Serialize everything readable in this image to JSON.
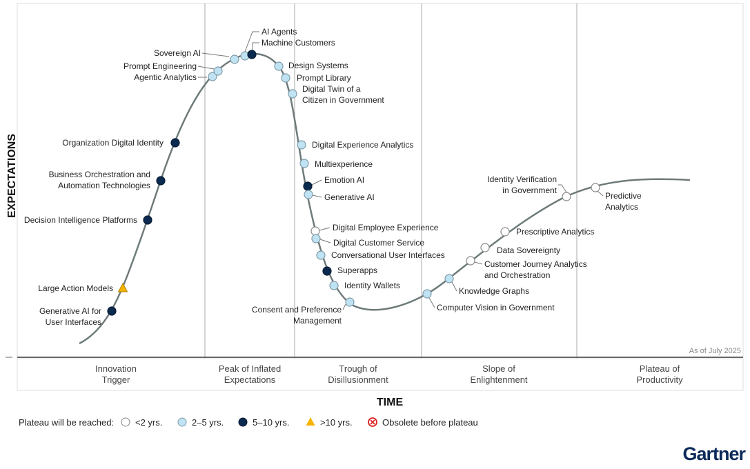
{
  "y_axis_label": "EXPECTATIONS",
  "x_axis_label": "TIME",
  "as_of": "As of July 2025",
  "phases": [
    "Innovation|Trigger",
    "Peak of Inflated|Expectations",
    "Trough of|Disillusionment",
    "Slope of|Enlightenment",
    "Plateau of|Productivity"
  ],
  "legend": {
    "title": "Plateau will be reached:",
    "items": [
      {
        "key": "lt2",
        "label": "<2 yrs."
      },
      {
        "key": "2to5",
        "label": "2–5 yrs."
      },
      {
        "key": "5to10",
        "label": "5–10 yrs."
      },
      {
        "key": "gt10",
        "label": ">10 yrs."
      },
      {
        "key": "obsolete",
        "label": "Obsolete before plateau"
      }
    ]
  },
  "colors": {
    "lt2": "#ffffff",
    "2to5": "#bfe3f2",
    "5to10": "#0b2a4f",
    "gt10": "#f5b400",
    "obsolete": "#e02020",
    "curve": "#6e7a7a",
    "brand": "#0b2a5b"
  },
  "brand": "Gartner",
  "technologies": [
    {
      "name": [
        "Generative AI for",
        "User Interfaces"
      ],
      "plateau": "5to10",
      "phase": "Innovation Trigger"
    },
    {
      "name": [
        "Large Action Models"
      ],
      "plateau": "gt10",
      "phase": "Innovation Trigger"
    },
    {
      "name": [
        "Decision Intelligence Platforms"
      ],
      "plateau": "5to10",
      "phase": "Innovation Trigger"
    },
    {
      "name": [
        "Business Orchestration and",
        "Automation Technologies"
      ],
      "plateau": "5to10",
      "phase": "Innovation Trigger"
    },
    {
      "name": [
        "Organization Digital Identity"
      ],
      "plateau": "5to10",
      "phase": "Innovation Trigger"
    },
    {
      "name": [
        "Agentic Analytics"
      ],
      "plateau": "2to5",
      "phase": "Peak of Inflated Expectations"
    },
    {
      "name": [
        "Prompt Engineering"
      ],
      "plateau": "2to5",
      "phase": "Peak of Inflated Expectations"
    },
    {
      "name": [
        "Sovereign AI"
      ],
      "plateau": "2to5",
      "phase": "Peak of Inflated Expectations"
    },
    {
      "name": [
        "AI Agents"
      ],
      "plateau": "2to5",
      "phase": "Peak of Inflated Expectations"
    },
    {
      "name": [
        "Machine Customers"
      ],
      "plateau": "5to10",
      "phase": "Peak of Inflated Expectations"
    },
    {
      "name": [
        "Design Systems"
      ],
      "plateau": "2to5",
      "phase": "Peak of Inflated Expectations"
    },
    {
      "name": [
        "Prompt Library"
      ],
      "plateau": "2to5",
      "phase": "Peak of Inflated Expectations"
    },
    {
      "name": [
        "Digital Twin of a",
        "Citizen in Government"
      ],
      "plateau": "2to5",
      "phase": "Trough of Disillusionment"
    },
    {
      "name": [
        "Digital Experience Analytics"
      ],
      "plateau": "2to5",
      "phase": "Trough of Disillusionment"
    },
    {
      "name": [
        "Multiexperience"
      ],
      "plateau": "2to5",
      "phase": "Trough of Disillusionment"
    },
    {
      "name": [
        "Emotion AI"
      ],
      "plateau": "5to10",
      "phase": "Trough of Disillusionment"
    },
    {
      "name": [
        "Generative AI"
      ],
      "plateau": "2to5",
      "phase": "Trough of Disillusionment"
    },
    {
      "name": [
        "Digital Employee Experience"
      ],
      "plateau": "lt2",
      "phase": "Trough of Disillusionment"
    },
    {
      "name": [
        "Digital Customer Service"
      ],
      "plateau": "2to5",
      "phase": "Trough of Disillusionment"
    },
    {
      "name": [
        "Conversational User Interfaces"
      ],
      "plateau": "2to5",
      "phase": "Trough of Disillusionment"
    },
    {
      "name": [
        "Superapps"
      ],
      "plateau": "5to10",
      "phase": "Trough of Disillusionment"
    },
    {
      "name": [
        "Identity Wallets"
      ],
      "plateau": "2to5",
      "phase": "Trough of Disillusionment"
    },
    {
      "name": [
        "Consent and Preference",
        "Management"
      ],
      "plateau": "2to5",
      "phase": "Trough of Disillusionment"
    },
    {
      "name": [
        "Computer Vision in Government"
      ],
      "plateau": "2to5",
      "phase": "Slope of Enlightenment"
    },
    {
      "name": [
        "Knowledge Graphs"
      ],
      "plateau": "2to5",
      "phase": "Slope of Enlightenment"
    },
    {
      "name": [
        "Customer Journey Analytics",
        "and Orchestration"
      ],
      "plateau": "lt2",
      "phase": "Slope of Enlightenment"
    },
    {
      "name": [
        "Data Sovereignty"
      ],
      "plateau": "lt2",
      "phase": "Slope of Enlightenment"
    },
    {
      "name": [
        "Prescriptive Analytics"
      ],
      "plateau": "lt2",
      "phase": "Slope of Enlightenment"
    },
    {
      "name": [
        "Identity Verification",
        "in Government"
      ],
      "plateau": "lt2",
      "phase": "Slope of Enlightenment"
    },
    {
      "name": [
        "Predictive",
        "Analytics"
      ],
      "plateau": "lt2",
      "phase": "Plateau of Productivity"
    }
  ]
}
